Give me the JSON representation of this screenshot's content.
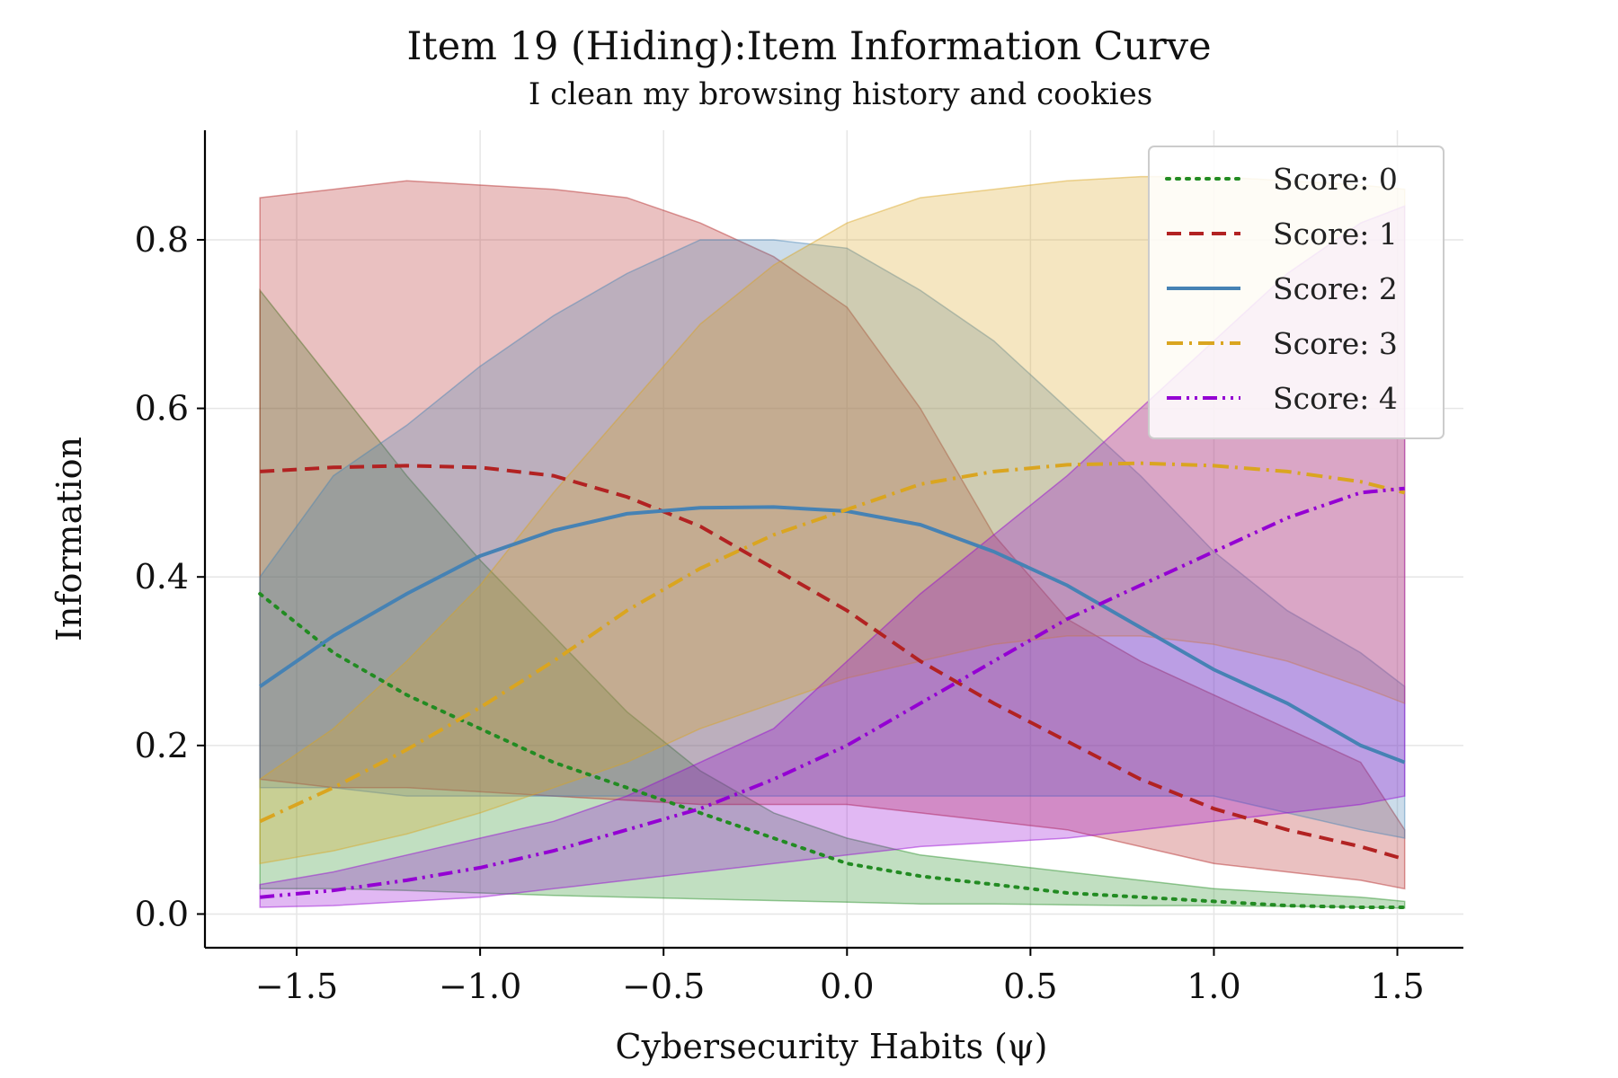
{
  "chart_data": {
    "type": "line",
    "title": "Item 19 (Hiding):Item Information Curve",
    "subtitle": "I clean my browsing history and cookies",
    "xlabel": "Cybersecurity Habits (ψ)",
    "ylabel": "Information",
    "xlim": [
      -1.75,
      1.68
    ],
    "ylim": [
      -0.04,
      0.93
    ],
    "xticks": [
      -1.5,
      -1.0,
      -0.5,
      0.0,
      0.5,
      1.0,
      1.5
    ],
    "xtick_labels": [
      "−1.5",
      "−1.0",
      "−0.5",
      "0.0",
      "0.5",
      "1.0",
      "1.5"
    ],
    "yticks": [
      0.0,
      0.2,
      0.4,
      0.6,
      0.8
    ],
    "ytick_labels": [
      "0.0",
      "0.2",
      "0.4",
      "0.6",
      "0.8"
    ],
    "grid": true,
    "legend_position": "top-right",
    "x": [
      -1.6,
      -1.4,
      -1.2,
      -1.0,
      -0.8,
      -0.6,
      -0.4,
      -0.2,
      0.0,
      0.2,
      0.4,
      0.6,
      0.8,
      1.0,
      1.2,
      1.4,
      1.52
    ],
    "series": [
      {
        "name": "Score: 0",
        "color": "#228B22",
        "dash": "dotted",
        "values": [
          0.38,
          0.31,
          0.26,
          0.22,
          0.18,
          0.15,
          0.12,
          0.09,
          0.06,
          0.045,
          0.035,
          0.025,
          0.02,
          0.015,
          0.01,
          0.008,
          0.008
        ],
        "lower": [
          0.03,
          0.03,
          0.028,
          0.025,
          0.022,
          0.02,
          0.018,
          0.016,
          0.014,
          0.012,
          0.012,
          0.011,
          0.01,
          0.01,
          0.009,
          0.008,
          0.007
        ],
        "upper": [
          0.74,
          0.63,
          0.52,
          0.42,
          0.33,
          0.24,
          0.17,
          0.12,
          0.09,
          0.07,
          0.06,
          0.05,
          0.04,
          0.03,
          0.025,
          0.02,
          0.015
        ]
      },
      {
        "name": "Score: 1",
        "color": "#B22222",
        "dash": "dashed",
        "values": [
          0.525,
          0.53,
          0.532,
          0.53,
          0.52,
          0.495,
          0.46,
          0.41,
          0.36,
          0.3,
          0.25,
          0.205,
          0.16,
          0.125,
          0.1,
          0.08,
          0.065
        ],
        "lower": [
          0.16,
          0.15,
          0.15,
          0.145,
          0.14,
          0.135,
          0.13,
          0.13,
          0.13,
          0.12,
          0.11,
          0.1,
          0.08,
          0.06,
          0.05,
          0.04,
          0.03
        ],
        "upper": [
          0.85,
          0.86,
          0.87,
          0.865,
          0.86,
          0.85,
          0.82,
          0.78,
          0.72,
          0.6,
          0.45,
          0.35,
          0.3,
          0.26,
          0.22,
          0.18,
          0.1
        ]
      },
      {
        "name": "Score: 2",
        "color": "#4682B4",
        "dash": "solid",
        "values": [
          0.27,
          0.33,
          0.38,
          0.425,
          0.455,
          0.475,
          0.482,
          0.483,
          0.478,
          0.462,
          0.43,
          0.39,
          0.34,
          0.29,
          0.25,
          0.2,
          0.18
        ],
        "lower": [
          0.15,
          0.15,
          0.14,
          0.14,
          0.14,
          0.14,
          0.14,
          0.14,
          0.14,
          0.14,
          0.14,
          0.14,
          0.14,
          0.14,
          0.12,
          0.1,
          0.09
        ],
        "upper": [
          0.4,
          0.52,
          0.58,
          0.65,
          0.71,
          0.76,
          0.8,
          0.8,
          0.79,
          0.74,
          0.68,
          0.6,
          0.52,
          0.43,
          0.36,
          0.31,
          0.27
        ]
      },
      {
        "name": "Score: 3",
        "color": "#DAA520",
        "dash": "dashdot",
        "values": [
          0.11,
          0.15,
          0.195,
          0.245,
          0.3,
          0.36,
          0.41,
          0.45,
          0.48,
          0.51,
          0.525,
          0.533,
          0.535,
          0.532,
          0.525,
          0.513,
          0.5
        ],
        "lower": [
          0.06,
          0.075,
          0.095,
          0.12,
          0.15,
          0.18,
          0.22,
          0.25,
          0.28,
          0.3,
          0.32,
          0.33,
          0.33,
          0.32,
          0.3,
          0.27,
          0.25
        ],
        "upper": [
          0.16,
          0.22,
          0.3,
          0.39,
          0.5,
          0.6,
          0.7,
          0.77,
          0.82,
          0.85,
          0.86,
          0.87,
          0.875,
          0.875,
          0.87,
          0.865,
          0.86
        ]
      },
      {
        "name": "Score: 4",
        "color": "#9400D3",
        "dash": "dashdotdot",
        "values": [
          0.02,
          0.028,
          0.04,
          0.055,
          0.075,
          0.1,
          0.125,
          0.16,
          0.2,
          0.25,
          0.3,
          0.35,
          0.39,
          0.43,
          0.47,
          0.5,
          0.505
        ],
        "lower": [
          0.008,
          0.01,
          0.015,
          0.02,
          0.03,
          0.04,
          0.05,
          0.06,
          0.07,
          0.08,
          0.085,
          0.09,
          0.1,
          0.11,
          0.12,
          0.13,
          0.14
        ],
        "upper": [
          0.035,
          0.05,
          0.07,
          0.09,
          0.11,
          0.14,
          0.18,
          0.22,
          0.3,
          0.38,
          0.45,
          0.52,
          0.6,
          0.68,
          0.76,
          0.82,
          0.84
        ]
      }
    ]
  }
}
